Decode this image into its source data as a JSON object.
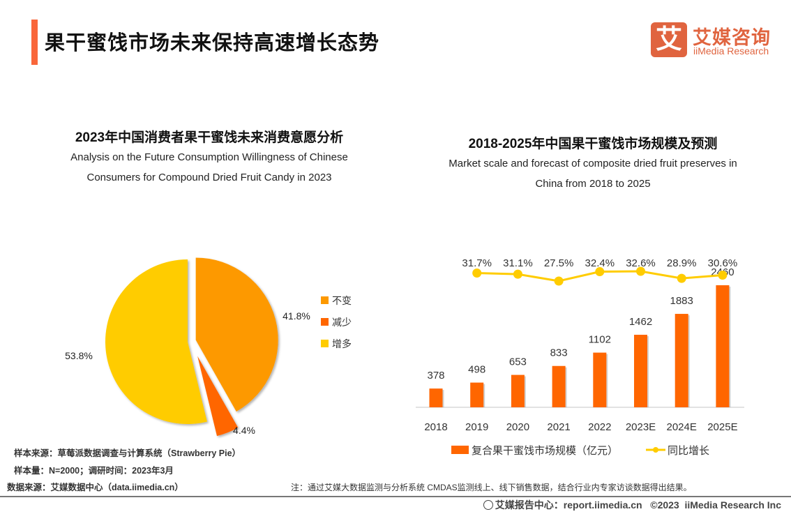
{
  "header": {
    "title": "果干蜜饯市场未来保持高速增长态势",
    "accent_color": "#f9663a",
    "logo": {
      "icon_text": "艾",
      "cn": "艾媒咨询",
      "en": "iiMedia Research",
      "color": "#e0643f"
    }
  },
  "chart_data": [
    {
      "type": "pie",
      "title": "2023年中国消费者果干蜜饯未来消费意愿分析",
      "subtitle_lines": [
        "Analysis on the Future Consumption Willingness of Chinese",
        "Consumers for Compound Dried Fruit Candy in 2023"
      ],
      "slices": [
        {
          "label": "不变",
          "value": 41.8,
          "display": "41.8%",
          "color": "#fd9900"
        },
        {
          "label": "减少",
          "value": 4.4,
          "display": "4.4%",
          "color": "#ff6600"
        },
        {
          "label": "增多",
          "value": 53.8,
          "display": "53.8%",
          "color": "#ffcc00"
        }
      ],
      "legend_position": "right",
      "exploded": true
    },
    {
      "type": "bar",
      "title": "2018-2025年中国果干蜜饯市场规模及预测",
      "subtitle_lines": [
        "Market scale and forecast of composite dried fruit preserves in",
        "China from 2018 to 2025"
      ],
      "categories": [
        "2018",
        "2019",
        "2020",
        "2021",
        "2022",
        "2023E",
        "2024E",
        "2025E"
      ],
      "series": [
        {
          "name": "复合果干蜜饯市场规模（亿元）",
          "type": "bar",
          "color": "#ff6600",
          "values": [
            378,
            498,
            653,
            833,
            1102,
            1462,
            1883,
            2460
          ],
          "labels": [
            "378",
            "498",
            "653",
            "833",
            "1102",
            "1462",
            "1883",
            "2460"
          ]
        },
        {
          "name": "同比增长",
          "type": "line",
          "color": "#ffcc00",
          "values": [
            31.7,
            31.1,
            27.5,
            32.4,
            32.6,
            28.9,
            30.6
          ],
          "x_categories": [
            "2019",
            "2020",
            "2021",
            "2022",
            "2023E",
            "2024E",
            "2025E"
          ],
          "labels": [
            "31.7%",
            "31.1%",
            "27.5%",
            "32.4%",
            "32.6%",
            "28.9%",
            "30.6%"
          ]
        }
      ],
      "xlabel": "",
      "ylabel": "",
      "grid": false,
      "legend_position": "bottom"
    }
  ],
  "notes": {
    "sample_source": "样本来源：草莓派数据调查与计算系统（Strawberry Pie）",
    "sample_size": "样本量：N=2000；调研时间：2023年3月",
    "data_source": "数据来源：艾媒数据中心（data.iimedia.cn）",
    "footnote": "注：通过艾媒大数据监测与分析系统 CMDAS监测线上、线下销售数据，结合行业内专家访谈数据得出结果。"
  },
  "footer": {
    "icon": "globe-icon",
    "text": "艾媒报告中心：report.iimedia.cn   ©2023  iiMedia Research Inc"
  }
}
